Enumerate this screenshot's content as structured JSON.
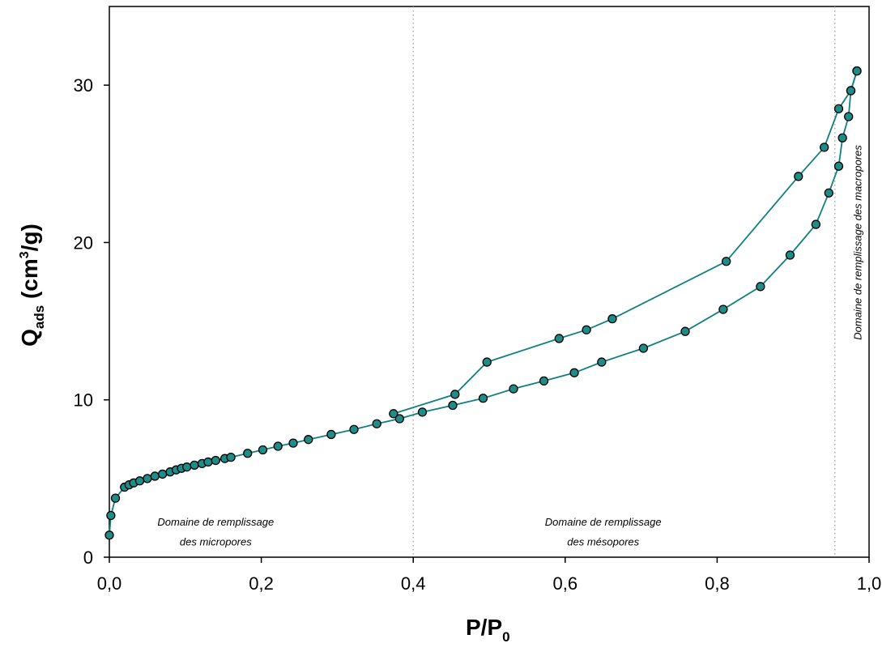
{
  "chart_data": {
    "type": "line",
    "x_axis": {
      "title_main": "P/P",
      "title_sub": "0",
      "range": [
        0.0,
        1.0
      ],
      "ticks": [
        0.0,
        0.2,
        0.4,
        0.6,
        0.8,
        1.0
      ],
      "tick_labels": [
        "0,0",
        "0,2",
        "0,4",
        "0,6",
        "0,8",
        "1,0"
      ]
    },
    "y_axis": {
      "title_main": "Q",
      "title_sub": "ads",
      "title_unit_pre": " (cm",
      "title_sup": "3",
      "title_unit_post": "/g)",
      "range": [
        0,
        35
      ],
      "ticks": [
        0,
        10,
        20,
        30
      ],
      "tick_labels": [
        "0",
        "10",
        "20",
        "30"
      ]
    },
    "grid": false,
    "dividers": [
      0.4,
      0.955
    ],
    "colors": {
      "line": "#108080",
      "marker_fill": "#1e8c88",
      "marker_edge": "#000000",
      "divider": "#999999"
    },
    "annotations": [
      {
        "line1": "Domaine de remplissage",
        "line2": "des micropores",
        "x": 0.14,
        "y1": 2.0,
        "y2": 0.75
      },
      {
        "line1": "Domaine de remplissage",
        "line2": "des mésopores",
        "x": 0.65,
        "y1": 2.0,
        "y2": 0.75
      },
      {
        "text": "Domaine de remplissage des macropores",
        "x": 0.99,
        "y": 20.0,
        "rotation": -90
      }
    ],
    "series": [
      {
        "type": "adsorption",
        "points": [
          [
            0.0,
            1.4
          ],
          [
            0.002,
            2.65
          ],
          [
            0.008,
            3.75
          ],
          [
            0.02,
            4.45
          ],
          [
            0.026,
            4.6
          ],
          [
            0.032,
            4.72
          ],
          [
            0.04,
            4.85
          ],
          [
            0.05,
            5.0
          ],
          [
            0.06,
            5.15
          ],
          [
            0.07,
            5.28
          ],
          [
            0.08,
            5.42
          ],
          [
            0.088,
            5.55
          ],
          [
            0.095,
            5.65
          ],
          [
            0.102,
            5.73
          ],
          [
            0.112,
            5.85
          ],
          [
            0.122,
            5.95
          ],
          [
            0.13,
            6.05
          ],
          [
            0.14,
            6.15
          ],
          [
            0.152,
            6.27
          ],
          [
            0.16,
            6.35
          ],
          [
            0.182,
            6.6
          ],
          [
            0.202,
            6.82
          ],
          [
            0.222,
            7.05
          ],
          [
            0.242,
            7.25
          ],
          [
            0.262,
            7.48
          ],
          [
            0.292,
            7.8
          ],
          [
            0.322,
            8.12
          ],
          [
            0.352,
            8.48
          ],
          [
            0.382,
            8.8
          ],
          [
            0.412,
            9.22
          ],
          [
            0.452,
            9.65
          ],
          [
            0.492,
            10.1
          ],
          [
            0.532,
            10.7
          ],
          [
            0.572,
            11.2
          ],
          [
            0.612,
            11.72
          ],
          [
            0.648,
            12.4
          ],
          [
            0.703,
            13.28
          ],
          [
            0.758,
            14.35
          ],
          [
            0.808,
            15.75
          ],
          [
            0.857,
            17.2
          ],
          [
            0.896,
            19.2
          ],
          [
            0.93,
            21.15
          ],
          [
            0.947,
            23.15
          ],
          [
            0.96,
            24.85
          ],
          [
            0.965,
            26.65
          ],
          [
            0.973,
            28.0
          ],
          [
            0.976,
            29.65
          ],
          [
            0.984,
            30.9
          ]
        ]
      },
      {
        "type": "desorption",
        "points": [
          [
            0.984,
            30.9
          ],
          [
            0.976,
            29.65
          ],
          [
            0.96,
            28.5
          ],
          [
            0.941,
            26.05
          ],
          [
            0.907,
            24.2
          ],
          [
            0.812,
            18.8
          ],
          [
            0.662,
            15.15
          ],
          [
            0.628,
            14.45
          ],
          [
            0.592,
            13.9
          ],
          [
            0.497,
            12.4
          ],
          [
            0.455,
            10.35
          ],
          [
            0.374,
            9.12
          ]
        ]
      }
    ]
  }
}
